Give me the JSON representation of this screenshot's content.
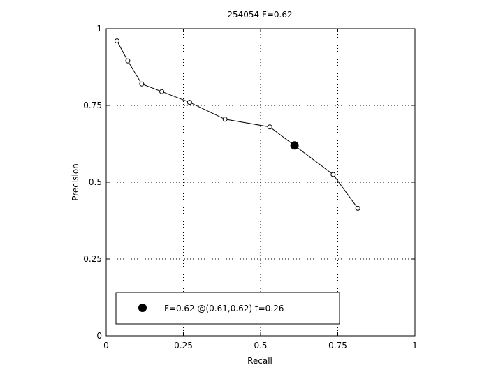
{
  "chart_data": {
    "type": "line",
    "title": "254054 F=0.62",
    "xlabel": "Recall",
    "ylabel": "Precision",
    "xlim": [
      0,
      1
    ],
    "ylim": [
      0,
      1
    ],
    "grid": true,
    "x_ticks": [
      "0",
      "0.25",
      "0.5",
      "0.75",
      "1"
    ],
    "y_ticks": [
      "0",
      "0.25",
      "0.5",
      "0.75",
      "1"
    ],
    "x_tick_values": [
      0,
      0.25,
      0.5,
      0.75,
      1
    ],
    "y_tick_values": [
      0,
      0.25,
      0.5,
      0.75,
      1
    ],
    "series": [
      {
        "x": [
          0.035,
          0.07,
          0.115,
          0.18,
          0.27,
          0.385,
          0.53,
          0.735,
          0.815
        ],
        "y": [
          0.96,
          0.895,
          0.82,
          0.795,
          0.76,
          0.705,
          0.68,
          0.525,
          0.415
        ]
      }
    ],
    "highlight": {
      "x": 0.61,
      "y": 0.62
    },
    "legend": {
      "placement": "bottom-left",
      "text": "F=0.62 @(0.61,0.62) t=0.26"
    }
  }
}
